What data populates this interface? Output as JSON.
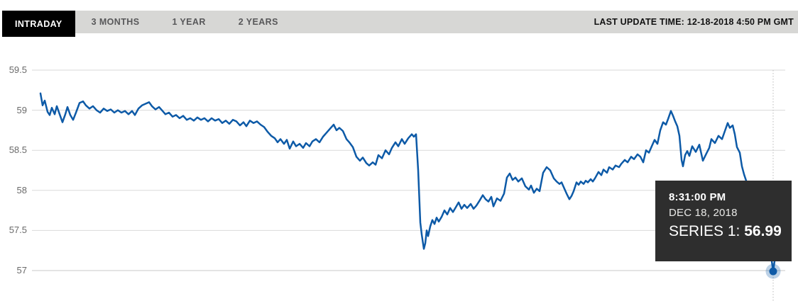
{
  "header": {
    "tabs": [
      {
        "label": "INTRADAY",
        "active": true
      },
      {
        "label": "3 MONTHS",
        "active": false
      },
      {
        "label": "1 YEAR",
        "active": false
      },
      {
        "label": "2 YEARS",
        "active": false
      }
    ],
    "last_update": "LAST UPDATE TIME: 12-18-2018 4:50 PM GMT"
  },
  "tooltip": {
    "time": "8:31:00 PM",
    "date": "DEC 18, 2018",
    "series_label": "SERIES 1:",
    "value": "56.99"
  },
  "colors": {
    "line": "#0d5aa7",
    "marker": "#0d5aa7",
    "marker_halo": "rgba(13,90,167,0.28)",
    "grid": "#dadada",
    "grid_bottom": "#c9c9c9",
    "crosshair": "#b9b9b9",
    "axis_text": "#6a6a6a",
    "tab_bar_bg": "#d7d7d5",
    "tab_active_bg": "#000000",
    "tab_active_text": "#ffffff",
    "tab_text": "#58585a",
    "tooltip_bg": "#2e2e2e"
  },
  "chart_data": {
    "type": "line",
    "title": "",
    "xlabel": "",
    "ylabel": "",
    "x_tick_labels": [],
    "yticks": [
      59.5,
      59,
      58.5,
      58,
      57.5,
      57
    ],
    "ylim": [
      57,
      59.5
    ],
    "grid": "horizontal",
    "legend": "none",
    "crosshair_x": 1089,
    "highlight_point": {
      "x": 1089,
      "value": 56.99
    },
    "series": [
      {
        "name": "SERIES 1",
        "points": [
          [
            57,
            59.21
          ],
          [
            60,
            59.06
          ],
          [
            63,
            59.12
          ],
          [
            67,
            58.98
          ],
          [
            70,
            58.94
          ],
          [
            73,
            59.03
          ],
          [
            77,
            58.95
          ],
          [
            80,
            59.05
          ],
          [
            84,
            58.95
          ],
          [
            88,
            58.85
          ],
          [
            92,
            58.95
          ],
          [
            95,
            59.04
          ],
          [
            99,
            58.94
          ],
          [
            103,
            58.88
          ],
          [
            107,
            58.97
          ],
          [
            112,
            59.09
          ],
          [
            117,
            59.11
          ],
          [
            121,
            59.06
          ],
          [
            126,
            59.02
          ],
          [
            131,
            59.05
          ],
          [
            136,
            59.0
          ],
          [
            141,
            58.97
          ],
          [
            146,
            59.02
          ],
          [
            151,
            58.99
          ],
          [
            156,
            59.01
          ],
          [
            161,
            58.97
          ],
          [
            166,
            59.0
          ],
          [
            171,
            58.97
          ],
          [
            176,
            58.99
          ],
          [
            181,
            58.95
          ],
          [
            186,
            58.99
          ],
          [
            190,
            58.94
          ],
          [
            195,
            59.02
          ],
          [
            200,
            59.06
          ],
          [
            205,
            59.08
          ],
          [
            210,
            59.1
          ],
          [
            214,
            59.05
          ],
          [
            219,
            59.01
          ],
          [
            224,
            59.04
          ],
          [
            229,
            58.99
          ],
          [
            233,
            58.95
          ],
          [
            238,
            58.97
          ],
          [
            243,
            58.92
          ],
          [
            248,
            58.94
          ],
          [
            253,
            58.9
          ],
          [
            258,
            58.93
          ],
          [
            263,
            58.88
          ],
          [
            268,
            58.9
          ],
          [
            273,
            58.87
          ],
          [
            278,
            58.91
          ],
          [
            283,
            58.88
          ],
          [
            288,
            58.9
          ],
          [
            293,
            58.86
          ],
          [
            298,
            58.9
          ],
          [
            303,
            58.87
          ],
          [
            308,
            58.89
          ],
          [
            313,
            58.84
          ],
          [
            318,
            58.87
          ],
          [
            323,
            58.83
          ],
          [
            328,
            58.88
          ],
          [
            333,
            58.86
          ],
          [
            338,
            58.81
          ],
          [
            343,
            58.85
          ],
          [
            347,
            58.8
          ],
          [
            352,
            58.87
          ],
          [
            357,
            58.84
          ],
          [
            362,
            58.86
          ],
          [
            367,
            58.82
          ],
          [
            372,
            58.79
          ],
          [
            377,
            58.73
          ],
          [
            382,
            58.68
          ],
          [
            387,
            58.65
          ],
          [
            391,
            58.6
          ],
          [
            395,
            58.64
          ],
          [
            400,
            58.58
          ],
          [
            404,
            58.63
          ],
          [
            408,
            58.52
          ],
          [
            413,
            58.61
          ],
          [
            417,
            58.55
          ],
          [
            422,
            58.58
          ],
          [
            427,
            58.53
          ],
          [
            431,
            58.59
          ],
          [
            436,
            58.55
          ],
          [
            440,
            58.61
          ],
          [
            445,
            58.64
          ],
          [
            450,
            58.6
          ],
          [
            455,
            58.67
          ],
          [
            460,
            58.72
          ],
          [
            465,
            58.77
          ],
          [
            470,
            58.82
          ],
          [
            474,
            58.75
          ],
          [
            478,
            58.78
          ],
          [
            483,
            58.74
          ],
          [
            488,
            58.64
          ],
          [
            492,
            58.6
          ],
          [
            497,
            58.54
          ],
          [
            502,
            58.42
          ],
          [
            507,
            58.37
          ],
          [
            511,
            58.41
          ],
          [
            516,
            58.34
          ],
          [
            520,
            58.31
          ],
          [
            525,
            58.35
          ],
          [
            529,
            58.32
          ],
          [
            533,
            58.44
          ],
          [
            538,
            58.4
          ],
          [
            543,
            58.5
          ],
          [
            548,
            58.45
          ],
          [
            552,
            58.53
          ],
          [
            557,
            58.6
          ],
          [
            561,
            58.55
          ],
          [
            566,
            58.64
          ],
          [
            570,
            58.58
          ],
          [
            575,
            58.65
          ],
          [
            580,
            58.7
          ],
          [
            583,
            58.67
          ],
          [
            586,
            58.7
          ],
          [
            589,
            58.25
          ],
          [
            592,
            57.6
          ],
          [
            594,
            57.45
          ],
          [
            597,
            57.27
          ],
          [
            599,
            57.34
          ],
          [
            601,
            57.5
          ],
          [
            603,
            57.43
          ],
          [
            606,
            57.55
          ],
          [
            609,
            57.63
          ],
          [
            612,
            57.58
          ],
          [
            615,
            57.66
          ],
          [
            618,
            57.61
          ],
          [
            622,
            57.67
          ],
          [
            626,
            57.75
          ],
          [
            630,
            57.7
          ],
          [
            634,
            57.78
          ],
          [
            638,
            57.73
          ],
          [
            642,
            57.79
          ],
          [
            646,
            57.85
          ],
          [
            650,
            57.77
          ],
          [
            654,
            57.82
          ],
          [
            658,
            57.78
          ],
          [
            663,
            57.83
          ],
          [
            667,
            57.77
          ],
          [
            671,
            57.81
          ],
          [
            676,
            57.88
          ],
          [
            680,
            57.94
          ],
          [
            684,
            57.89
          ],
          [
            688,
            57.86
          ],
          [
            692,
            57.92
          ],
          [
            695,
            57.8
          ],
          [
            700,
            57.9
          ],
          [
            705,
            57.87
          ],
          [
            710,
            57.96
          ],
          [
            714,
            58.16
          ],
          [
            718,
            58.21
          ],
          [
            722,
            58.13
          ],
          [
            726,
            58.16
          ],
          [
            730,
            58.11
          ],
          [
            735,
            58.15
          ],
          [
            740,
            58.05
          ],
          [
            745,
            58.01
          ],
          [
            748,
            58.06
          ],
          [
            752,
            57.97
          ],
          [
            756,
            58.02
          ],
          [
            760,
            57.99
          ],
          [
            765,
            58.22
          ],
          [
            770,
            58.29
          ],
          [
            775,
            58.25
          ],
          [
            780,
            58.15
          ],
          [
            784,
            58.11
          ],
          [
            788,
            58.08
          ],
          [
            791,
            58.1
          ],
          [
            794,
            58.04
          ],
          [
            798,
            57.96
          ],
          [
            802,
            57.89
          ],
          [
            805,
            57.93
          ],
          [
            808,
            57.99
          ],
          [
            812,
            58.1
          ],
          [
            815,
            58.07
          ],
          [
            818,
            58.11
          ],
          [
            822,
            58.08
          ],
          [
            825,
            58.12
          ],
          [
            828,
            58.1
          ],
          [
            832,
            58.14
          ],
          [
            835,
            58.11
          ],
          [
            838,
            58.15
          ],
          [
            843,
            58.23
          ],
          [
            847,
            58.19
          ],
          [
            850,
            58.26
          ],
          [
            855,
            58.22
          ],
          [
            858,
            58.29
          ],
          [
            863,
            58.26
          ],
          [
            867,
            58.31
          ],
          [
            872,
            58.29
          ],
          [
            875,
            58.33
          ],
          [
            880,
            58.38
          ],
          [
            884,
            58.35
          ],
          [
            889,
            58.42
          ],
          [
            893,
            58.39
          ],
          [
            898,
            58.45
          ],
          [
            902,
            58.42
          ],
          [
            906,
            58.35
          ],
          [
            910,
            58.5
          ],
          [
            914,
            58.47
          ],
          [
            918,
            58.55
          ],
          [
            922,
            58.63
          ],
          [
            926,
            58.58
          ],
          [
            930,
            58.75
          ],
          [
            934,
            58.85
          ],
          [
            938,
            58.82
          ],
          [
            941,
            58.89
          ],
          [
            945,
            58.99
          ],
          [
            948,
            58.93
          ],
          [
            951,
            58.86
          ],
          [
            954,
            58.8
          ],
          [
            957,
            58.68
          ],
          [
            960,
            58.38
          ],
          [
            962,
            58.3
          ],
          [
            965,
            58.44
          ],
          [
            968,
            58.49
          ],
          [
            971,
            58.43
          ],
          [
            975,
            58.55
          ],
          [
            980,
            58.48
          ],
          [
            985,
            58.57
          ],
          [
            990,
            58.37
          ],
          [
            995,
            58.46
          ],
          [
            999,
            58.53
          ],
          [
            1002,
            58.64
          ],
          [
            1007,
            58.59
          ],
          [
            1012,
            58.68
          ],
          [
            1017,
            58.64
          ],
          [
            1021,
            58.74
          ],
          [
            1025,
            58.84
          ],
          [
            1028,
            58.78
          ],
          [
            1032,
            58.81
          ],
          [
            1035,
            58.7
          ],
          [
            1038,
            58.54
          ],
          [
            1042,
            58.47
          ],
          [
            1045,
            58.3
          ],
          [
            1048,
            58.2
          ],
          [
            1051,
            58.12
          ],
          [
            1056,
            57.98
          ],
          [
            1061,
            57.86
          ],
          [
            1066,
            57.74
          ],
          [
            1071,
            57.62
          ],
          [
            1076,
            57.52
          ],
          [
            1080,
            57.44
          ],
          [
            1084,
            57.3
          ],
          [
            1087,
            57.12
          ],
          [
            1089,
            56.99
          ],
          [
            1092,
            57.18
          ],
          [
            1095,
            57.3
          ],
          [
            1098,
            57.27
          ],
          [
            1100,
            57.33
          ]
        ]
      }
    ]
  }
}
